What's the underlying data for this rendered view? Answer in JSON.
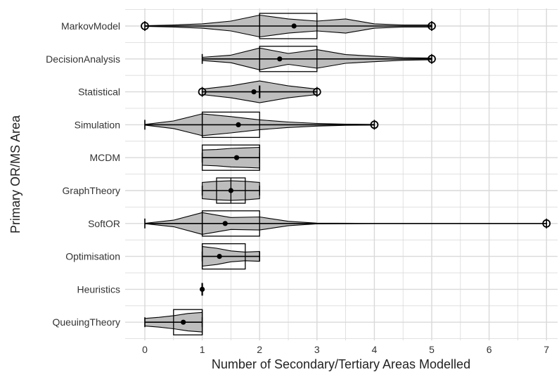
{
  "chart_data": {
    "type": "violin",
    "orientation": "horizontal",
    "xlabel": "Number of Secondary/Tertiary Areas Modelled",
    "ylabel": "Primary OR/MS Area",
    "xlim": [
      -0.35,
      7.2
    ],
    "xticks": [
      0,
      1,
      2,
      3,
      4,
      5,
      6,
      7
    ],
    "grid": true,
    "colors": {
      "violin_fill": "#bdbdbd",
      "grid": "#d9d9d9",
      "outline": "#000000"
    },
    "categories": [
      "MarkovModel",
      "DecisionAnalysis",
      "Statistical",
      "Simulation",
      "MCDM",
      "GraphTheory",
      "SoftOR",
      "Optimisation",
      "Heuristics",
      "QueuingTheory"
    ],
    "series": [
      {
        "category": "MarkovModel",
        "min": 0,
        "max": 5,
        "q1": 2,
        "median": 2,
        "q3": 3,
        "mean": 2.6,
        "outliers": [
          0,
          5
        ],
        "density": [
          [
            0,
            0.03
          ],
          [
            0.5,
            0.1
          ],
          [
            1,
            0.2
          ],
          [
            1.5,
            0.45
          ],
          [
            2,
            1.0
          ],
          [
            2.5,
            0.65
          ],
          [
            3,
            0.45
          ],
          [
            3.5,
            0.65
          ],
          [
            4,
            0.2
          ],
          [
            4.5,
            0.1
          ],
          [
            5,
            0.1
          ]
        ]
      },
      {
        "category": "DecisionAnalysis",
        "min": 1,
        "max": 5,
        "q1": 2,
        "median": 2,
        "q3": 3,
        "mean": 2.35,
        "outliers": [
          5
        ],
        "density": [
          [
            1,
            0.15
          ],
          [
            1.5,
            0.35
          ],
          [
            2,
            1.0
          ],
          [
            2.5,
            0.5
          ],
          [
            3,
            0.85
          ],
          [
            3.5,
            0.4
          ],
          [
            4,
            0.25
          ],
          [
            4.5,
            0.12
          ],
          [
            5,
            0.08
          ]
        ]
      },
      {
        "category": "Statistical",
        "min": 1,
        "max": 3,
        "q1": 2,
        "median": 2,
        "q3": 2,
        "mean": 1.9,
        "outliers": [
          1,
          3
        ],
        "density": [
          [
            1,
            0.25
          ],
          [
            1.5,
            0.55
          ],
          [
            2,
            1.0
          ],
          [
            2.5,
            0.55
          ],
          [
            3,
            0.25
          ]
        ]
      },
      {
        "category": "Simulation",
        "min": 0,
        "max": 4,
        "q1": 1,
        "median": 1,
        "q3": 2,
        "mean": 1.63,
        "outliers": [
          4
        ],
        "density": [
          [
            0,
            0.03
          ],
          [
            0.5,
            0.35
          ],
          [
            1,
            1.0
          ],
          [
            1.5,
            0.75
          ],
          [
            2,
            0.45
          ],
          [
            2.5,
            0.25
          ],
          [
            3,
            0.12
          ],
          [
            3.5,
            0.05
          ],
          [
            4,
            0.03
          ]
        ]
      },
      {
        "category": "MCDM",
        "min": 1,
        "max": 2,
        "q1": 1,
        "median": 2,
        "q3": 2,
        "mean": 1.6,
        "outliers": [],
        "density": [
          [
            1,
            0.7
          ],
          [
            1.25,
            0.75
          ],
          [
            1.5,
            0.85
          ],
          [
            1.75,
            0.9
          ],
          [
            2,
            0.95
          ]
        ]
      },
      {
        "category": "GraphTheory",
        "min": 1,
        "max": 2,
        "q1": 1.25,
        "median": 1.5,
        "q3": 1.75,
        "mean": 1.5,
        "outliers": [],
        "density": [
          [
            1,
            0.75
          ],
          [
            1.25,
            0.85
          ],
          [
            1.5,
            0.9
          ],
          [
            1.75,
            0.85
          ],
          [
            2,
            0.75
          ]
        ]
      },
      {
        "category": "SoftOR",
        "min": 0,
        "max": 7,
        "q1": 1,
        "median": 1,
        "q3": 2,
        "mean": 1.4,
        "outliers": [
          7
        ],
        "density": [
          [
            0,
            0.02
          ],
          [
            0.5,
            0.3
          ],
          [
            1,
            1.0
          ],
          [
            1.5,
            0.55
          ],
          [
            2,
            0.6
          ],
          [
            2.5,
            0.2
          ],
          [
            3,
            0.03
          ],
          [
            4,
            0.01
          ],
          [
            7,
            0.01
          ]
        ]
      },
      {
        "category": "Optimisation",
        "min": 1,
        "max": 2,
        "q1": 1,
        "median": 1,
        "q3": 1.75,
        "mean": 1.3,
        "outliers": [],
        "density": [
          [
            1,
            0.9
          ],
          [
            1.25,
            0.75
          ],
          [
            1.5,
            0.5
          ],
          [
            1.75,
            0.4
          ],
          [
            2,
            0.45
          ]
        ]
      },
      {
        "category": "Heuristics",
        "min": 1,
        "max": 1,
        "q1": 1,
        "median": 1,
        "q3": 1,
        "mean": 1,
        "outliers": [],
        "density": []
      },
      {
        "category": "QueuingTheory",
        "min": 0,
        "max": 1,
        "q1": 0.5,
        "median": 1,
        "q3": 1,
        "mean": 0.67,
        "outliers": [],
        "density": [
          [
            0,
            0.35
          ],
          [
            0.25,
            0.45
          ],
          [
            0.5,
            0.6
          ],
          [
            0.75,
            0.8
          ],
          [
            1,
            0.9
          ]
        ]
      }
    ]
  }
}
